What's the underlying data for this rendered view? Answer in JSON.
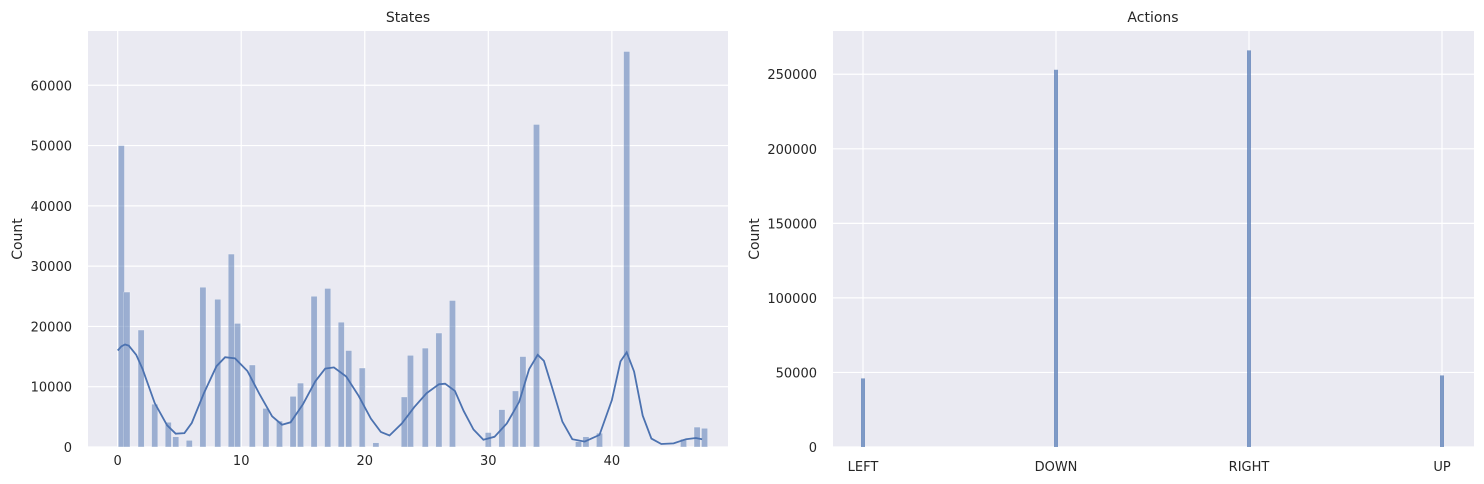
{
  "chart_data": [
    {
      "type": "bar",
      "title": "States",
      "xlabel": "",
      "ylabel": "Count",
      "xlim": [
        -2.4,
        49.4
      ],
      "ylim": [
        0,
        69000
      ],
      "xticks": [
        0,
        10,
        20,
        30,
        40
      ],
      "yticks": [
        0,
        10000,
        20000,
        30000,
        40000,
        50000,
        60000
      ],
      "grid": true,
      "bars": [
        {
          "x": 0.3,
          "y": 50000
        },
        {
          "x": 0.75,
          "y": 25700
        },
        {
          "x": 1.9,
          "y": 19400
        },
        {
          "x": 3.0,
          "y": 7100
        },
        {
          "x": 4.1,
          "y": 4100
        },
        {
          "x": 4.7,
          "y": 1700
        },
        {
          "x": 5.8,
          "y": 1100
        },
        {
          "x": 6.9,
          "y": 26500
        },
        {
          "x": 8.1,
          "y": 24500
        },
        {
          "x": 9.2,
          "y": 32000
        },
        {
          "x": 9.7,
          "y": 20500
        },
        {
          "x": 10.9,
          "y": 13600
        },
        {
          "x": 12.0,
          "y": 6400
        },
        {
          "x": 13.1,
          "y": 4300
        },
        {
          "x": 14.2,
          "y": 8400
        },
        {
          "x": 14.8,
          "y": 10600
        },
        {
          "x": 15.9,
          "y": 25000
        },
        {
          "x": 17.0,
          "y": 26300
        },
        {
          "x": 18.1,
          "y": 20700
        },
        {
          "x": 18.7,
          "y": 16000
        },
        {
          "x": 19.8,
          "y": 13100
        },
        {
          "x": 20.9,
          "y": 700
        },
        {
          "x": 23.2,
          "y": 8300
        },
        {
          "x": 23.7,
          "y": 15200
        },
        {
          "x": 24.9,
          "y": 16400
        },
        {
          "x": 26.0,
          "y": 18900
        },
        {
          "x": 27.1,
          "y": 24300
        },
        {
          "x": 30.0,
          "y": 2400
        },
        {
          "x": 31.1,
          "y": 6200
        },
        {
          "x": 32.2,
          "y": 9300
        },
        {
          "x": 32.8,
          "y": 15000
        },
        {
          "x": 33.9,
          "y": 53500
        },
        {
          "x": 37.3,
          "y": 900
        },
        {
          "x": 37.9,
          "y": 1700
        },
        {
          "x": 39.0,
          "y": 2300
        },
        {
          "x": 41.2,
          "y": 65600
        },
        {
          "x": 45.8,
          "y": 1300
        },
        {
          "x": 46.9,
          "y": 3300
        },
        {
          "x": 47.5,
          "y": 3100
        }
      ],
      "kde_curve": [
        [
          0,
          16000
        ],
        [
          0.3,
          16700
        ],
        [
          0.6,
          17000
        ],
        [
          0.9,
          16800
        ],
        [
          1.5,
          15300
        ],
        [
          2,
          13000
        ],
        [
          3,
          7300
        ],
        [
          4,
          3600
        ],
        [
          4.7,
          2200
        ],
        [
          5.4,
          2300
        ],
        [
          6,
          4000
        ],
        [
          7,
          9000
        ],
        [
          8,
          13400
        ],
        [
          8.7,
          14900
        ],
        [
          9.5,
          14700
        ],
        [
          10.5,
          12600
        ],
        [
          11.5,
          8700
        ],
        [
          12.5,
          5100
        ],
        [
          13.3,
          3700
        ],
        [
          14,
          4100
        ],
        [
          15,
          7100
        ],
        [
          16,
          10900
        ],
        [
          16.8,
          13000
        ],
        [
          17.5,
          13200
        ],
        [
          18.5,
          11700
        ],
        [
          19.5,
          8500
        ],
        [
          20.5,
          4700
        ],
        [
          21.3,
          2500
        ],
        [
          22,
          1900
        ],
        [
          23,
          3900
        ],
        [
          24,
          6600
        ],
        [
          25,
          8900
        ],
        [
          26,
          10400
        ],
        [
          26.5,
          10500
        ],
        [
          27.3,
          9300
        ],
        [
          28,
          6000
        ],
        [
          28.8,
          2900
        ],
        [
          29.6,
          1200
        ],
        [
          30.5,
          1700
        ],
        [
          31.5,
          3900
        ],
        [
          32.5,
          7500
        ],
        [
          33.3,
          12900
        ],
        [
          34,
          15300
        ],
        [
          34.5,
          14300
        ],
        [
          35.2,
          9600
        ],
        [
          36,
          4200
        ],
        [
          36.8,
          1300
        ],
        [
          37.8,
          900
        ],
        [
          39,
          2000
        ],
        [
          40,
          7800
        ],
        [
          40.7,
          14200
        ],
        [
          41.2,
          15700
        ],
        [
          41.8,
          12500
        ],
        [
          42.5,
          5200
        ],
        [
          43.2,
          1400
        ],
        [
          44,
          500
        ],
        [
          45,
          600
        ],
        [
          46,
          1300
        ],
        [
          46.8,
          1500
        ],
        [
          47.3,
          1300
        ]
      ]
    },
    {
      "type": "bar",
      "title": "Actions",
      "xlabel": "",
      "ylabel": "Count",
      "categories": [
        "LEFT",
        "DOWN",
        "RIGHT",
        "UP"
      ],
      "values": [
        46000,
        253000,
        266000,
        48000
      ],
      "ylim": [
        0,
        279000
      ],
      "yticks": [
        0,
        50000,
        100000,
        150000,
        200000,
        250000
      ],
      "grid": true
    }
  ],
  "colors": {
    "plot_bg": "#eaeaf2",
    "grid": "#ffffff",
    "bar": "#4c72b0",
    "kde": "#4c72b0",
    "text": "#262626"
  }
}
